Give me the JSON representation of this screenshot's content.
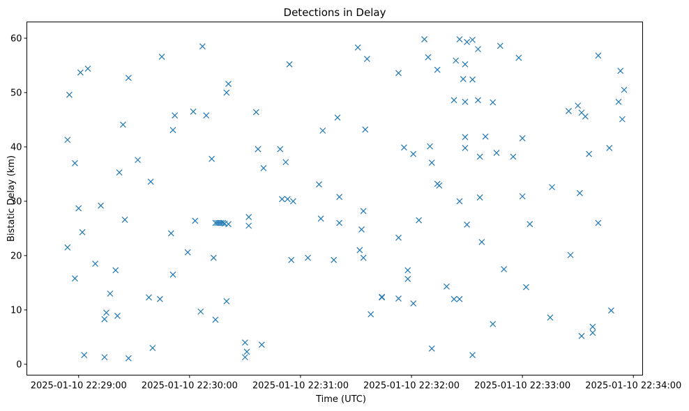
{
  "chart_data": {
    "type": "scatter",
    "title": "Detections in Delay",
    "xlabel": "Time (UTC)",
    "ylabel": "Bistatic Delay (km)",
    "x_unit": "seconds after 2025-01-10 22:29:00",
    "x_ticks": [
      "2025-01-10 22:29:00",
      "2025-01-10 22:30:00",
      "2025-01-10 22:31:00",
      "2025-01-10 22:32:00",
      "2025-01-10 22:33:00",
      "2025-01-10 22:34:00"
    ],
    "y_ticks": [
      "0",
      "10",
      "20",
      "30",
      "40",
      "50",
      "60"
    ],
    "xlim": [
      -28,
      305
    ],
    "ylim": [
      -2,
      63
    ],
    "grid": false,
    "marker": "x",
    "color": "#1f77b4",
    "points": [
      [
        -6,
        41.3
      ],
      [
        -5,
        49.6
      ],
      [
        -6,
        21.5
      ],
      [
        -2,
        37
      ],
      [
        -2,
        15.8
      ],
      [
        0,
        28.7
      ],
      [
        1,
        53.7
      ],
      [
        2,
        24.3
      ],
      [
        3,
        1.7
      ],
      [
        5,
        54.4
      ],
      [
        9,
        18.5
      ],
      [
        12,
        29.2
      ],
      [
        14,
        8.3
      ],
      [
        14,
        1.3
      ],
      [
        15,
        9.5
      ],
      [
        17,
        13
      ],
      [
        20,
        17.3
      ],
      [
        21,
        8.9
      ],
      [
        22,
        35.3
      ],
      [
        24,
        44.1
      ],
      [
        25,
        26.6
      ],
      [
        27,
        52.7
      ],
      [
        27,
        1.1
      ],
      [
        32,
        37.6
      ],
      [
        38,
        12.3
      ],
      [
        39,
        33.6
      ],
      [
        40,
        3
      ],
      [
        44,
        12
      ],
      [
        45,
        56.6
      ],
      [
        50,
        24.1
      ],
      [
        51,
        16.5
      ],
      [
        51,
        43.1
      ],
      [
        52,
        45.8
      ],
      [
        59,
        20.6
      ],
      [
        62,
        46.5
      ],
      [
        63,
        26.4
      ],
      [
        66,
        9.7
      ],
      [
        67,
        58.5
      ],
      [
        69,
        45.8
      ],
      [
        72,
        37.8
      ],
      [
        73,
        19.6
      ],
      [
        74,
        8.2
      ],
      [
        74,
        26
      ],
      [
        75,
        26
      ],
      [
        76,
        26
      ],
      [
        77,
        26
      ],
      [
        78,
        26
      ],
      [
        79,
        25.9
      ],
      [
        80,
        11.6
      ],
      [
        80,
        50
      ],
      [
        81,
        51.6
      ],
      [
        81,
        25.8
      ],
      [
        90,
        4
      ],
      [
        90,
        1.3
      ],
      [
        91,
        2.3
      ],
      [
        92,
        27.1
      ],
      [
        92,
        25.5
      ],
      [
        96,
        46.4
      ],
      [
        97,
        39.6
      ],
      [
        99,
        3.6
      ],
      [
        100,
        36.1
      ],
      [
        109,
        39.6
      ],
      [
        110,
        30.4
      ],
      [
        112,
        37.2
      ],
      [
        113,
        30.4
      ],
      [
        114,
        55.2
      ],
      [
        115,
        19.2
      ],
      [
        116,
        30
      ],
      [
        124,
        19.6
      ],
      [
        130,
        33.1
      ],
      [
        131,
        26.8
      ],
      [
        132,
        43
      ],
      [
        138,
        19.2
      ],
      [
        140,
        45.4
      ],
      [
        141,
        30.8
      ],
      [
        141,
        26
      ],
      [
        151,
        58.3
      ],
      [
        152,
        21
      ],
      [
        153,
        24.8
      ],
      [
        154,
        28.2
      ],
      [
        154,
        19.6
      ],
      [
        155,
        43.2
      ],
      [
        156,
        56.2
      ],
      [
        158,
        9.2
      ],
      [
        164,
        12.4
      ],
      [
        164,
        12.3
      ],
      [
        173,
        53.6
      ],
      [
        173,
        23.3
      ],
      [
        173,
        12.1
      ],
      [
        176,
        39.9
      ],
      [
        178,
        17.3
      ],
      [
        178,
        15.7
      ],
      [
        181,
        38.7
      ],
      [
        181,
        11.2
      ],
      [
        184,
        26.5
      ],
      [
        187,
        59.8
      ],
      [
        189,
        56.5
      ],
      [
        190,
        40.1
      ],
      [
        191,
        37.1
      ],
      [
        191,
        2.9
      ],
      [
        194,
        54.2
      ],
      [
        194,
        33.2
      ],
      [
        195,
        32.9
      ],
      [
        199,
        14.3
      ],
      [
        203,
        12
      ],
      [
        203,
        48.6
      ],
      [
        204,
        55.9
      ],
      [
        206,
        59.8
      ],
      [
        206,
        30
      ],
      [
        206,
        12
      ],
      [
        208,
        52.5
      ],
      [
        209,
        41.8
      ],
      [
        209,
        48.3
      ],
      [
        209,
        55.2
      ],
      [
        209,
        39.8
      ],
      [
        210,
        25.7
      ],
      [
        210,
        59.3
      ],
      [
        213,
        1.7
      ],
      [
        213,
        52.4
      ],
      [
        213,
        59.7
      ],
      [
        216,
        58
      ],
      [
        216,
        48.6
      ],
      [
        217,
        38.2
      ],
      [
        217,
        30.7
      ],
      [
        218,
        22.5
      ],
      [
        220,
        41.9
      ],
      [
        224,
        48.2
      ],
      [
        224,
        7.4
      ],
      [
        226,
        38.9
      ],
      [
        228,
        58.6
      ],
      [
        230,
        17.5
      ],
      [
        235,
        38.2
      ],
      [
        238,
        56.4
      ],
      [
        240,
        41.6
      ],
      [
        240,
        30.9
      ],
      [
        242,
        14.2
      ],
      [
        244,
        25.8
      ],
      [
        255,
        8.6
      ],
      [
        256,
        32.6
      ],
      [
        265,
        46.6
      ],
      [
        266,
        20.1
      ],
      [
        270,
        47.6
      ],
      [
        271,
        31.5
      ],
      [
        272,
        46.3
      ],
      [
        272,
        5.2
      ],
      [
        274,
        45.6
      ],
      [
        276,
        38.7
      ],
      [
        278,
        5.8
      ],
      [
        278,
        6.9
      ],
      [
        281,
        56.8
      ],
      [
        281,
        26
      ],
      [
        287,
        39.8
      ],
      [
        288,
        9.9
      ],
      [
        292,
        48.3
      ],
      [
        293,
        54
      ],
      [
        294,
        45.1
      ],
      [
        295,
        50.5
      ]
    ]
  }
}
